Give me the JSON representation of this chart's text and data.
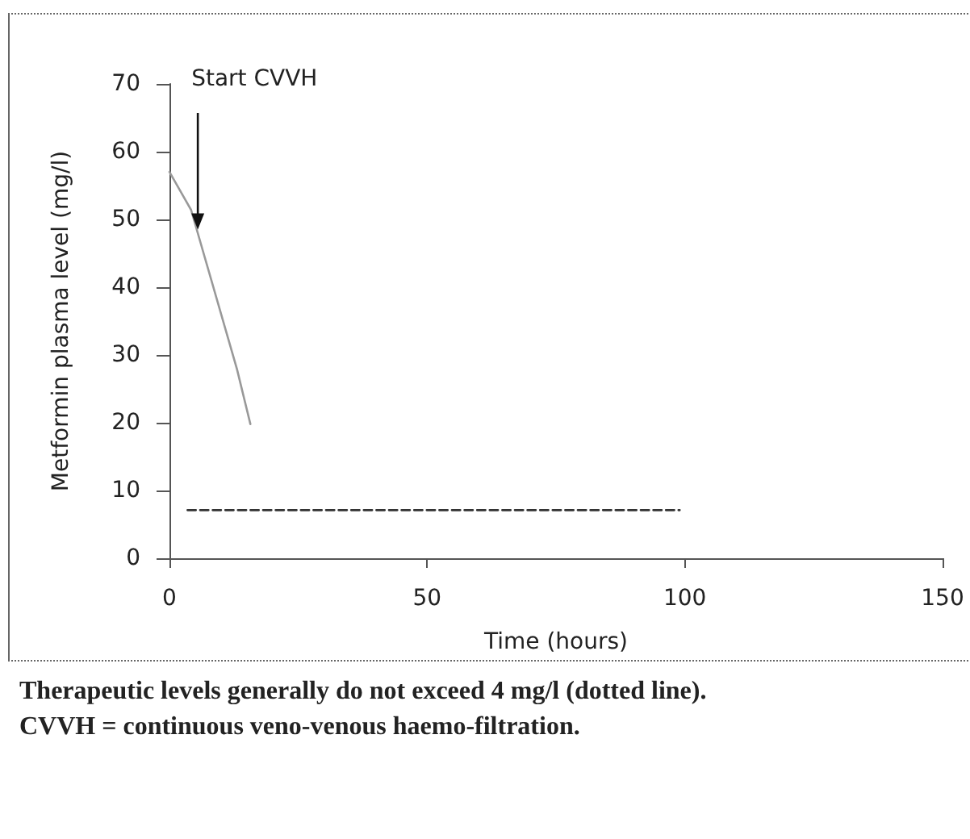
{
  "chart_data": {
    "type": "line",
    "xlabel": "Time (hours)",
    "ylabel": "Metformin plasma level (mg/l)",
    "xlim": [
      0,
      150
    ],
    "xticks": [
      0,
      50,
      100,
      150
    ],
    "ylim": [
      0,
      70
    ],
    "yticks": [
      0,
      10,
      20,
      30,
      40,
      50,
      60,
      70
    ],
    "grid": false,
    "marker": "none",
    "series": [
      {
        "color": "#999999",
        "x": [
          0,
          4.2,
          13.1,
          15.7
        ],
        "values": [
          57,
          51.4,
          27.9,
          19.8
        ],
        "line_style": "solid"
      },
      {
        "color": "#333333",
        "x": [
          3.5,
          99
        ],
        "values": [
          7.1,
          7.1
        ],
        "line_style": "dashed"
      }
    ],
    "annotations": [
      {
        "text": "Start CVVH",
        "x": 5.5,
        "y": 48.5
      },
      "Therapeutic levels generally do not exceed 4 mg/l (dotted line).",
      "CVVH = continuous veno-venous haemo-filtration."
    ]
  }
}
